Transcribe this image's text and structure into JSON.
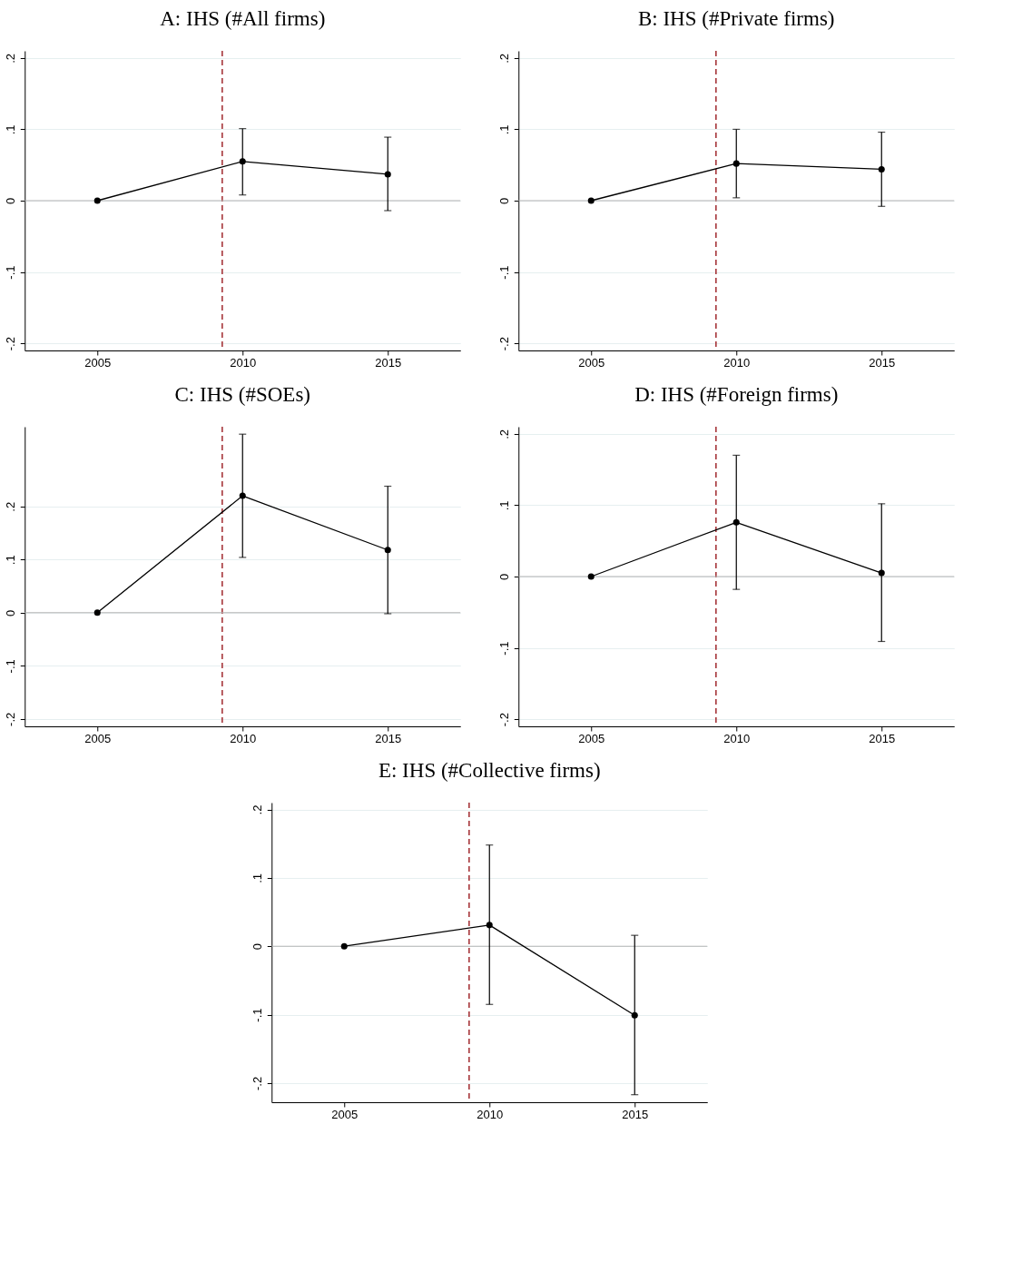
{
  "chart_data": [
    {
      "type": "line",
      "title": "A: IHS (#All firms)",
      "x": [
        2005,
        2010,
        2015
      ],
      "series": [
        {
          "color": "#000000",
          "values": [
            0,
            0.055,
            0.037
          ],
          "errors": [
            null,
            [
              0.008,
              0.101
            ],
            [
              -0.014,
              0.089
            ]
          ]
        }
      ],
      "xlim": [
        2002.5,
        2017.5
      ],
      "xticks": [
        2005,
        2010,
        2015
      ],
      "ylim": [
        -0.21,
        0.21
      ],
      "yticks": [
        {
          "value": -0.2,
          "label": "-.2"
        },
        {
          "value": -0.1,
          "label": "-.1"
        },
        {
          "value": 0,
          "label": "0"
        },
        {
          "value": 0.1,
          "label": ".1"
        },
        {
          "value": 0.2,
          "label": ".2"
        }
      ],
      "grid": "y",
      "marker": "circle",
      "line_style": "solid",
      "ref_lines": [
        {
          "axis": "x",
          "value": 2009.3,
          "color": "#a0282d",
          "line_style": "dashed"
        },
        {
          "axis": "y",
          "value": 0,
          "color": "#b4b4b4",
          "line_style": "solid"
        }
      ]
    },
    {
      "type": "line",
      "title": "B: IHS (#Private firms)",
      "x": [
        2005,
        2010,
        2015
      ],
      "series": [
        {
          "color": "#000000",
          "values": [
            0,
            0.052,
            0.044
          ],
          "errors": [
            null,
            [
              0.004,
              0.1
            ],
            [
              -0.008,
              0.096
            ]
          ]
        }
      ],
      "xlim": [
        2002.5,
        2017.5
      ],
      "xticks": [
        2005,
        2010,
        2015
      ],
      "ylim": [
        -0.21,
        0.21
      ],
      "yticks": [
        {
          "value": -0.2,
          "label": "-.2"
        },
        {
          "value": -0.1,
          "label": "-.1"
        },
        {
          "value": 0,
          "label": "0"
        },
        {
          "value": 0.1,
          "label": ".1"
        },
        {
          "value": 0.2,
          "label": ".2"
        }
      ],
      "grid": "y",
      "marker": "circle",
      "line_style": "solid",
      "ref_lines": [
        {
          "axis": "x",
          "value": 2009.3,
          "color": "#a0282d",
          "line_style": "dashed"
        },
        {
          "axis": "y",
          "value": 0,
          "color": "#b4b4b4",
          "line_style": "solid"
        }
      ]
    },
    {
      "type": "line",
      "title": "C: IHS (#SOEs)",
      "x": [
        2005,
        2010,
        2015
      ],
      "series": [
        {
          "color": "#000000",
          "values": [
            0,
            0.22,
            0.118
          ],
          "errors": [
            null,
            [
              0.104,
              0.336
            ],
            [
              -0.002,
              0.238
            ]
          ]
        }
      ],
      "xlim": [
        2002.5,
        2017.5
      ],
      "xticks": [
        2005,
        2010,
        2015
      ],
      "ylim": [
        -0.214,
        0.35
      ],
      "yticks": [
        {
          "value": -0.2,
          "label": "-.2"
        },
        {
          "value": -0.1,
          "label": "-.1"
        },
        {
          "value": 0,
          "label": "0"
        },
        {
          "value": 0.1,
          "label": ".1"
        },
        {
          "value": 0.2,
          "label": ".2"
        }
      ],
      "grid": "y",
      "marker": "circle",
      "line_style": "solid",
      "ref_lines": [
        {
          "axis": "x",
          "value": 2009.3,
          "color": "#a0282d",
          "line_style": "dashed"
        },
        {
          "axis": "y",
          "value": 0,
          "color": "#b4b4b4",
          "line_style": "solid"
        }
      ]
    },
    {
      "type": "line",
      "title": "D: IHS (#Foreign firms)",
      "x": [
        2005,
        2010,
        2015
      ],
      "series": [
        {
          "color": "#000000",
          "values": [
            0,
            0.076,
            0.005
          ],
          "errors": [
            null,
            [
              -0.018,
              0.17
            ],
            [
              -0.091,
              0.102
            ]
          ]
        }
      ],
      "xlim": [
        2002.5,
        2017.5
      ],
      "xticks": [
        2005,
        2010,
        2015
      ],
      "ylim": [
        -0.21,
        0.21
      ],
      "yticks": [
        {
          "value": -0.2,
          "label": "-.2"
        },
        {
          "value": -0.1,
          "label": "-.1"
        },
        {
          "value": 0,
          "label": "0"
        },
        {
          "value": 0.1,
          "label": ".1"
        },
        {
          "value": 0.2,
          "label": ".2"
        }
      ],
      "grid": "y",
      "marker": "circle",
      "line_style": "solid",
      "ref_lines": [
        {
          "axis": "x",
          "value": 2009.3,
          "color": "#a0282d",
          "line_style": "dashed"
        },
        {
          "axis": "y",
          "value": 0,
          "color": "#b4b4b4",
          "line_style": "solid"
        }
      ]
    },
    {
      "type": "line",
      "title": "E: IHS (#Collective firms)",
      "x": [
        2005,
        2010,
        2015
      ],
      "series": [
        {
          "color": "#000000",
          "values": [
            0,
            0.031,
            -0.101
          ],
          "errors": [
            null,
            [
              -0.085,
              0.148
            ],
            [
              -0.217,
              0.016
            ]
          ]
        }
      ],
      "xlim": [
        2002.5,
        2017.5
      ],
      "xticks": [
        2005,
        2010,
        2015
      ],
      "ylim": [
        -0.228,
        0.21
      ],
      "yticks": [
        {
          "value": -0.2,
          "label": "-.2"
        },
        {
          "value": -0.1,
          "label": "-.1"
        },
        {
          "value": 0,
          "label": "0"
        },
        {
          "value": 0.1,
          "label": ".1"
        },
        {
          "value": 0.2,
          "label": ".2"
        }
      ],
      "grid": "y",
      "marker": "circle",
      "line_style": "solid",
      "ref_lines": [
        {
          "axis": "x",
          "value": 2009.3,
          "color": "#a0282d",
          "line_style": "dashed"
        },
        {
          "axis": "y",
          "value": 0,
          "color": "#b4b4b4",
          "line_style": "solid"
        }
      ]
    }
  ]
}
